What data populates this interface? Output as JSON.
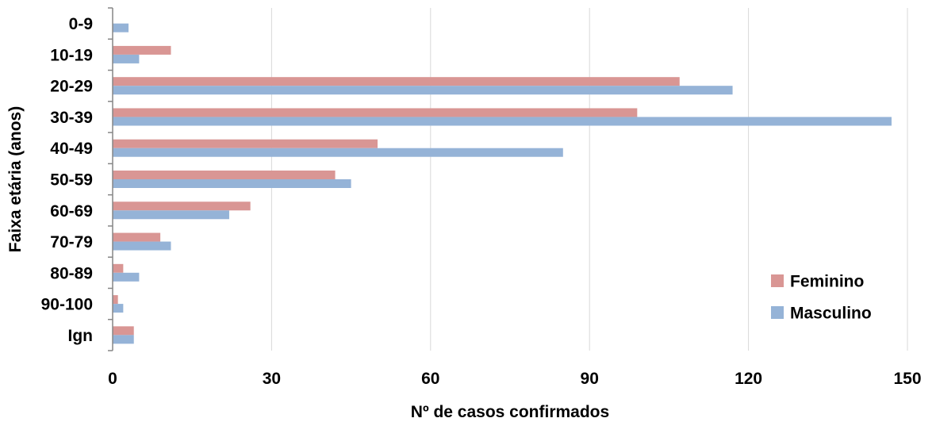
{
  "chart_data": {
    "type": "bar",
    "orientation": "horizontal",
    "categories": [
      "0-9",
      "10-19",
      "20-29",
      "30-39",
      "40-49",
      "50-59",
      "60-69",
      "70-79",
      "80-89",
      "90-100",
      "Ign"
    ],
    "series": [
      {
        "name": "Feminino",
        "color": "#d99694",
        "values": [
          0,
          11,
          107,
          99,
          50,
          42,
          26,
          9,
          2,
          1,
          4
        ]
      },
      {
        "name": "Masculino",
        "color": "#95b3d7",
        "values": [
          3,
          5,
          117,
          147,
          85,
          45,
          22,
          11,
          5,
          2,
          4
        ]
      }
    ],
    "xlabel": "Nº de casos confirmados",
    "ylabel": "Faixa etária (anos)",
    "xlim": [
      0,
      150
    ],
    "xticks": [
      "0",
      "30",
      "60",
      "90",
      "120",
      "150"
    ],
    "grid": "vertical",
    "legend": "right"
  }
}
